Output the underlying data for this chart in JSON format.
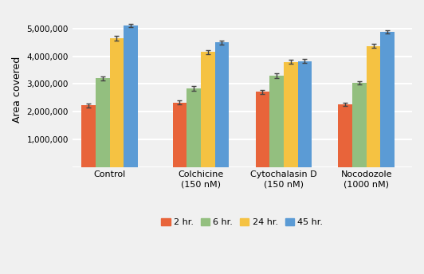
{
  "categories": [
    "Control",
    "Colchicine\n(150 nM)",
    "Cytochalasin D\n(150 nM)",
    "Nocodozole\n(1000 nM)"
  ],
  "series_labels": [
    "2 hr.",
    "6 hr.",
    "24 hr.",
    "45 hr."
  ],
  "colors": [
    "#e8643a",
    "#93bf7f",
    "#f5c242",
    "#5b9bd5"
  ],
  "values": [
    [
      2220000,
      2330000,
      2720000,
      2270000
    ],
    [
      3200000,
      2840000,
      3300000,
      3040000
    ],
    [
      4650000,
      4150000,
      3800000,
      4370000
    ],
    [
      5100000,
      4500000,
      3830000,
      4870000
    ]
  ],
  "errors": [
    [
      80000,
      70000,
      70000,
      60000
    ],
    [
      65000,
      75000,
      80000,
      60000
    ],
    [
      80000,
      80000,
      80000,
      65000
    ],
    [
      60000,
      70000,
      60000,
      60000
    ]
  ],
  "ylabel": "Area covered",
  "ylim": [
    0,
    5600000
  ],
  "yticks": [
    0,
    1000000,
    2000000,
    3000000,
    4000000,
    5000000
  ],
  "ytick_labels": [
    "",
    "1,000,000",
    "2,000,000",
    "3,000,000",
    "4,000,000",
    "5,000,000"
  ],
  "background_color": "#f0f0f0",
  "grid_color": "#ffffff",
  "bar_width": 0.17,
  "group_positions": [
    0.45,
    1.55,
    2.55,
    3.55
  ]
}
